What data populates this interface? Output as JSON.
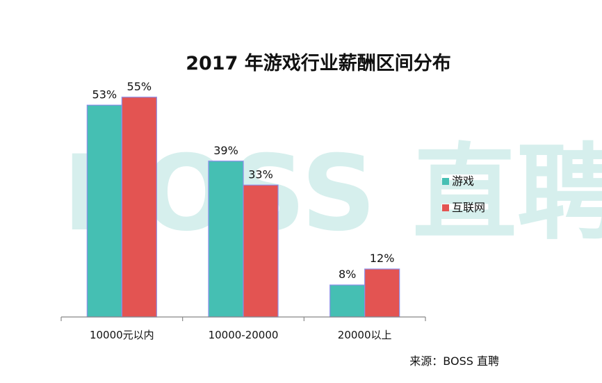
{
  "chart_data": {
    "type": "bar",
    "title": "2017 年游戏行业薪酬区间分布",
    "categories": [
      "10000元以内",
      "10000-20000",
      "20000以上"
    ],
    "series": [
      {
        "name": "游戏",
        "values": [
          53,
          39,
          8
        ],
        "color": "#45bfb3",
        "labels": [
          "53%",
          "39%",
          "8%"
        ]
      },
      {
        "name": "互联网",
        "values": [
          55,
          33,
          12
        ],
        "color": "#e35452",
        "labels": [
          "55%",
          "33%",
          "12%"
        ]
      }
    ],
    "ylim": [
      0,
      60
    ],
    "xlabel": "",
    "ylabel": "",
    "grid": false,
    "legend_position": "right",
    "watermark": "BOSS 直聘",
    "source": "来源：BOSS 直聘"
  }
}
